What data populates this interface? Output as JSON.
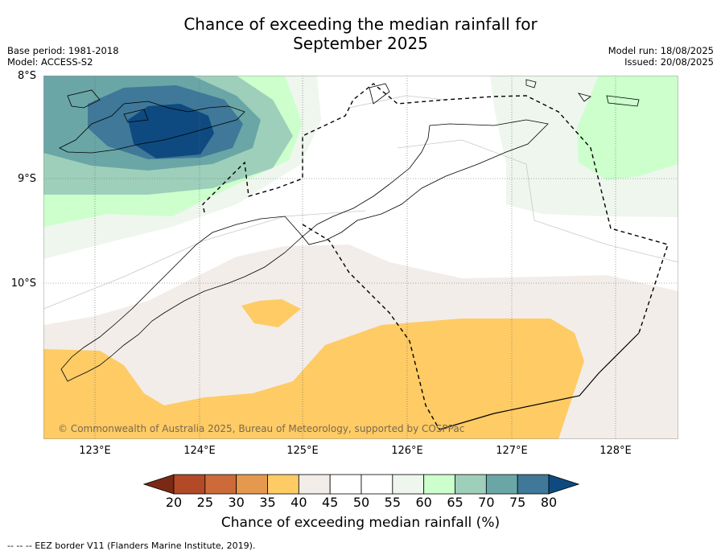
{
  "title_line1": "Chance of exceeding the median rainfall for",
  "title_line2": "September 2025",
  "meta_left": [
    "Base period: 1981-2018",
    "Model: ACCESS-S2"
  ],
  "meta_right": [
    "Model run: 18/08/2025",
    "Issued: 20/08/2025"
  ],
  "lat_labels": [
    "8°S",
    "9°S",
    "10°S"
  ],
  "lon_labels": [
    "123°E",
    "124°E",
    "125°E",
    "126°E",
    "127°E",
    "128°E"
  ],
  "copyright": "© Commonwealth of Australia 2025, Bureau of Meteorology, supported by COSPPac",
  "colorbar": {
    "title": "Chance of exceeding median rainfall (%)",
    "ticks": [
      "20",
      "25",
      "30",
      "35",
      "40",
      "45",
      "50",
      "55",
      "60",
      "65",
      "70",
      "75",
      "80"
    ],
    "colors": [
      "#7a2a14",
      "#b24a28",
      "#cc6a3a",
      "#e5994e",
      "#fecb65",
      "#f2ede9",
      "#ffffff",
      "#ffffff",
      "#eef6ee",
      "#ccffcc",
      "#9ecfbb",
      "#6aa6a6",
      "#3f7898",
      "#0e4a80"
    ]
  },
  "footnote": "--  --  -- EEZ border V11 (Flanders Marine Institute, 2019)."
}
